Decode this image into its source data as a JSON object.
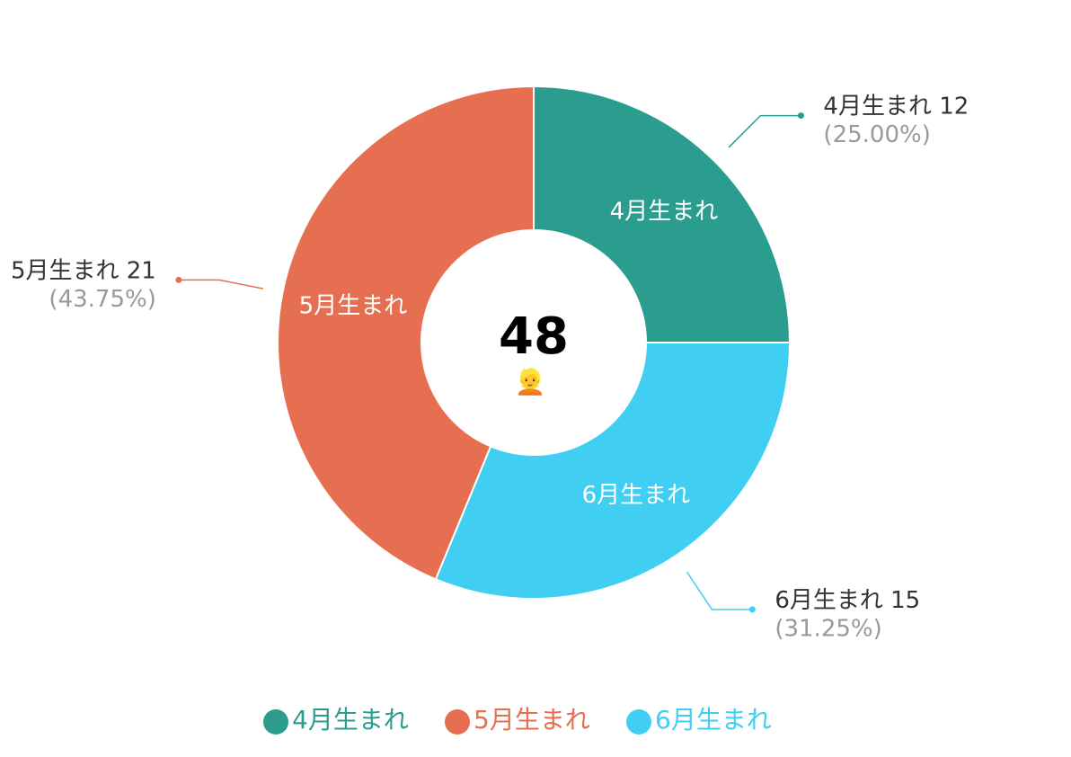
{
  "chart_data": {
    "type": "donut",
    "categories": [
      "4月生まれ",
      "5月生まれ",
      "6月生まれ"
    ],
    "values": [
      12,
      21,
      15
    ],
    "percent_labels": [
      "(25.00%)",
      "(43.75%)",
      "(31.25%)"
    ],
    "colors": [
      "#2a9d8f",
      "#e76f51",
      "#40cef2"
    ],
    "total": "48",
    "center_icon": "👱",
    "legend": "bottom"
  }
}
